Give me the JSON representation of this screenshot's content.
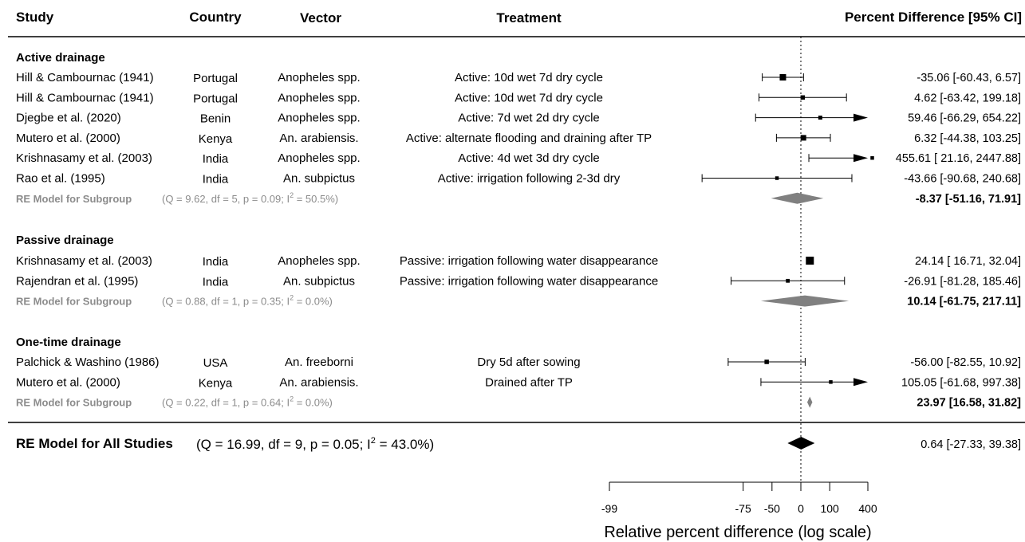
{
  "headers": {
    "study": "Study",
    "country": "Country",
    "vector": "Vector",
    "treatment": "Treatment",
    "effect": "Percent Difference [95% CI]"
  },
  "chart_data": {
    "type": "forest",
    "xlabel": "Relative percent difference (log scale)",
    "xscale": "log(1 + x/100)",
    "xlim": [
      -99,
      400
    ],
    "xticks": [
      -99,
      -75,
      -50,
      0,
      100,
      400
    ],
    "reference_line": 0,
    "groups": [
      {
        "name": "Active drainage",
        "studies": [
          {
            "study": "Hill & Cambournac (1941)",
            "country": "Portugal",
            "vector": "Anopheles spp.",
            "treatment": "Active: 10d wet 7d dry cycle",
            "est": -35.06,
            "lo": -60.43,
            "hi": 6.57,
            "est_text": "-35.06 [-60.43,   6.57]",
            "weight": 1.0
          },
          {
            "study": "Hill & Cambournac (1941)",
            "country": "Portugal",
            "vector": "Anopheles spp.",
            "treatment": "Active: 10d wet 7d dry cycle",
            "est": 4.62,
            "lo": -63.42,
            "hi": 199.18,
            "est_text": "4.62 [-63.42, 199.18]",
            "weight": 0.5
          },
          {
            "study": "Djegbe et al. (2020)",
            "country": "Benin",
            "vector": "Anopheles spp.",
            "treatment": "Active: 7d wet 2d dry cycle",
            "est": 59.46,
            "lo": -66.29,
            "hi": 654.22,
            "est_text": "59.46 [-66.29, 654.22]",
            "weight": 0.4
          },
          {
            "study": "Mutero et al. (2000)",
            "country": "Kenya",
            "vector": "An. arabiensis.",
            "treatment": "Active: alternate flooding and draining after TP",
            "est": 6.32,
            "lo": -44.38,
            "hi": 103.25,
            "est_text": "6.32 [-44.38, 103.25]",
            "weight": 0.8
          },
          {
            "study": "Krishnasamy et al. (2003)",
            "country": "India",
            "vector": "Anopheles spp.",
            "treatment": "Active: 4d wet 3d dry cycle",
            "est": 455.61,
            "lo": 21.16,
            "hi": 2447.88,
            "est_text": "455.61 [ 21.16, 2447.88]",
            "weight": 0.3
          },
          {
            "study": "Rao et al. (1995)",
            "country": "India",
            "vector": "An. subpictus",
            "treatment": "Active: irrigation following 2-3d dry",
            "est": -43.66,
            "lo": -90.68,
            "hi": 240.68,
            "est_text": "-43.66 [-90.68, 240.68]",
            "weight": 0.3
          }
        ],
        "summary": {
          "label": "RE Model for Subgroup",
          "stat": "(Q = 9.62, df = 5, p = 0.09; I",
          "sup": "2",
          "stat_end": " = 50.5%)",
          "est": -8.37,
          "lo": -51.16,
          "hi": 71.91,
          "est_text": "-8.37 [-51.16, 71.91]"
        }
      },
      {
        "name": "Passive drainage",
        "studies": [
          {
            "study": "Krishnasamy et al. (2003)",
            "country": "India",
            "vector": "Anopheles spp.",
            "treatment": "Passive: irrigation following water disappearance",
            "est": 24.14,
            "lo": 16.71,
            "hi": 32.04,
            "est_text": "24.14 [ 16.71,  32.04]",
            "weight": 1.4
          },
          {
            "study": "Rajendran et al. (1995)",
            "country": "India",
            "vector": "An. subpictus",
            "treatment": "Passive: irrigation following water disappearance",
            "est": -26.91,
            "lo": -81.28,
            "hi": 185.46,
            "est_text": "-26.91 [-81.28, 185.46]",
            "weight": 0.35
          }
        ],
        "summary": {
          "label": "RE Model for Subgroup",
          "stat": "(Q = 0.88, df = 1, p = 0.35; I",
          "sup": "2",
          "stat_end": " = 0.0%)",
          "est": 10.14,
          "lo": -61.75,
          "hi": 217.11,
          "est_text": "10.14 [-61.75, 217.11]"
        }
      },
      {
        "name": "One-time drainage",
        "studies": [
          {
            "study": "Palchick & Washino (1986)",
            "country": "USA",
            "vector": "An. freeborni",
            "treatment": "Dry 5d after sowing",
            "est": -56.0,
            "lo": -82.55,
            "hi": 10.92,
            "est_text": "-56.00 [-82.55,  10.92]",
            "weight": 0.5
          },
          {
            "study": "Mutero et al. (2000)",
            "country": "Kenya",
            "vector": "An. arabiensis.",
            "treatment": "Drained after TP",
            "est": 105.05,
            "lo": -61.68,
            "hi": 997.38,
            "est_text": "105.05 [-61.68, 997.38]",
            "weight": 0.3
          }
        ],
        "summary": {
          "label": "RE Model for Subgroup",
          "stat": "(Q = 0.22, df = 1, p = 0.64; I",
          "sup": "2",
          "stat_end": " = 0.0%)",
          "est": 23.97,
          "lo": 16.58,
          "hi": 31.82,
          "est_text": "23.97 [16.58, 31.82]"
        }
      }
    ],
    "overall": {
      "label": "RE Model for All Studies",
      "stat": "(Q = 16.99, df = 9, p = 0.05; I",
      "sup": "2",
      "stat_end": " = 43.0%)",
      "est": 0.64,
      "lo": -27.33,
      "hi": 39.38,
      "est_text": "0.64 [-27.33,  39.38]"
    },
    "colors": {
      "subgroup_diamond": "#808080",
      "overall_diamond": "#000000",
      "subgroup_text": "#8c8c8c"
    }
  }
}
